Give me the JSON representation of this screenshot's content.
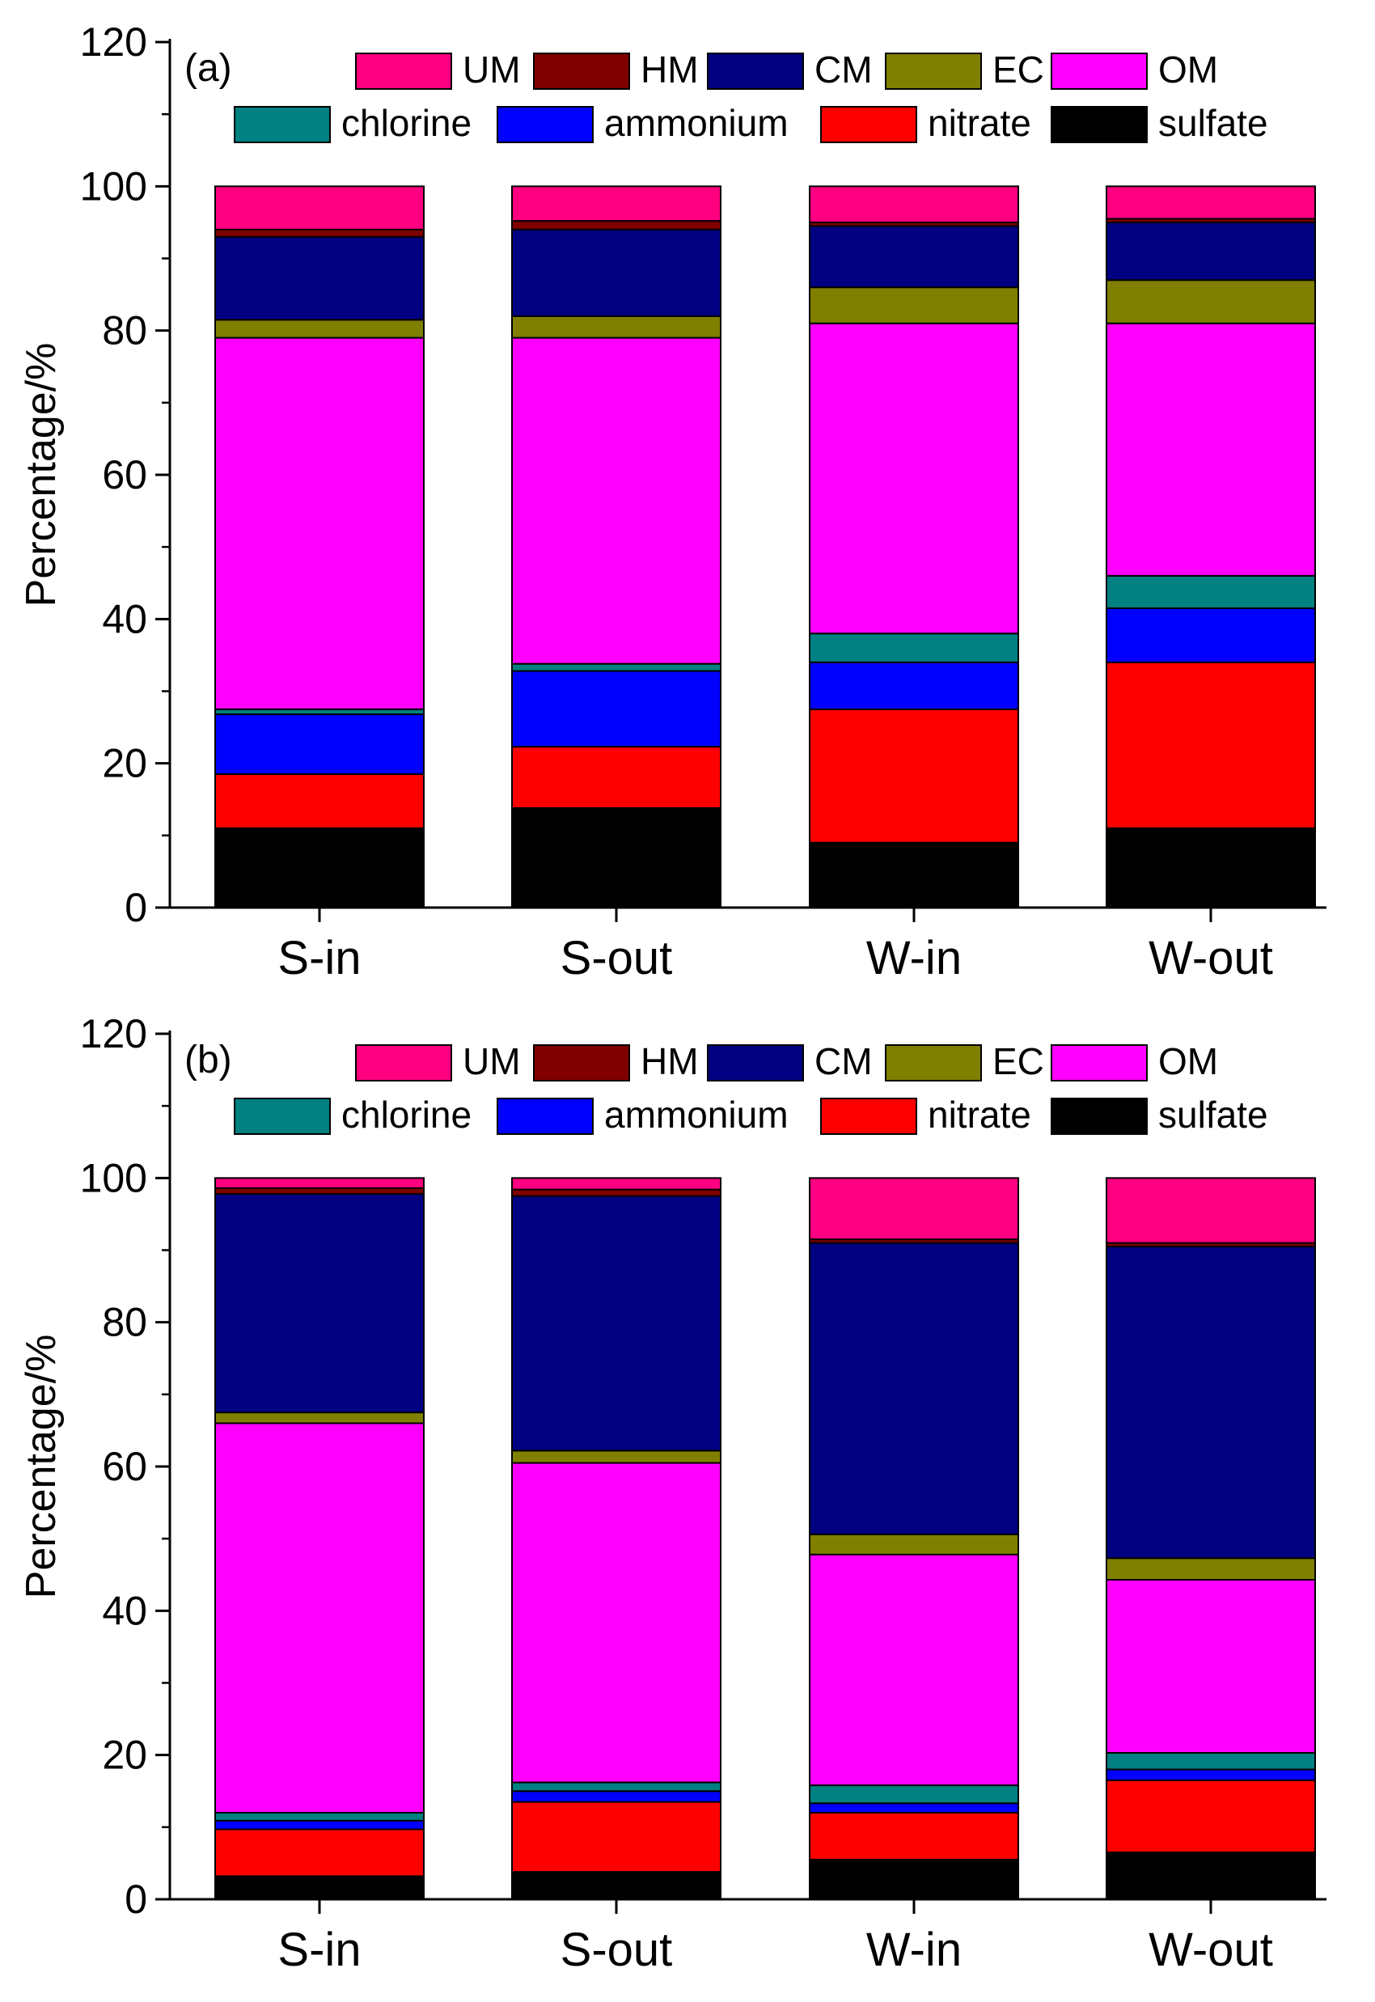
{
  "chart_data": [
    {
      "type": "bar",
      "stacked": true,
      "panel_label": "(a)",
      "categories": [
        "S-in",
        "S-out",
        "W-in",
        "W-out"
      ],
      "ylabel": "Percentage/%",
      "xlabel": "",
      "ylim": [
        0,
        120
      ],
      "yticks": [
        0,
        20,
        40,
        60,
        80,
        100,
        120
      ],
      "series": [
        {
          "name": "sulfate",
          "color": "#000000",
          "values": [
            11.0,
            13.8,
            9.0,
            11.0
          ]
        },
        {
          "name": "nitrate",
          "color": "#ff0000",
          "values": [
            7.5,
            8.5,
            18.5,
            23.0
          ]
        },
        {
          "name": "ammonium",
          "color": "#0000ff",
          "values": [
            8.3,
            10.5,
            6.5,
            7.5
          ]
        },
        {
          "name": "chlorine",
          "color": "#008080",
          "values": [
            0.7,
            1.0,
            4.0,
            4.5
          ]
        },
        {
          "name": "OM",
          "color": "#ff00ff",
          "values": [
            51.5,
            45.2,
            43.0,
            35.0
          ]
        },
        {
          "name": "EC",
          "color": "#808000",
          "values": [
            2.5,
            3.0,
            5.0,
            6.0
          ]
        },
        {
          "name": "CM",
          "color": "#000080",
          "values": [
            11.5,
            12.0,
            8.5,
            8.0
          ]
        },
        {
          "name": "HM",
          "color": "#800000",
          "values": [
            1.0,
            1.2,
            0.5,
            0.5
          ]
        },
        {
          "name": "UM",
          "color": "#ff0080",
          "values": [
            6.0,
            4.8,
            5.0,
            4.5
          ]
        }
      ],
      "legend": {
        "placement": "top",
        "row1": [
          "UM",
          "HM",
          "CM",
          "EC",
          "OM"
        ],
        "row2": [
          "chlorine",
          "ammonium",
          "nitrate",
          "sulfate"
        ]
      }
    },
    {
      "type": "bar",
      "stacked": true,
      "panel_label": "(b)",
      "categories": [
        "S-in",
        "S-out",
        "W-in",
        "W-out"
      ],
      "ylabel": "Percentage/%",
      "xlabel": "",
      "ylim": [
        0,
        120
      ],
      "yticks": [
        0,
        20,
        40,
        60,
        80,
        100,
        120
      ],
      "series": [
        {
          "name": "sulfate",
          "color": "#000000",
          "values": [
            3.2,
            3.8,
            5.5,
            6.5
          ]
        },
        {
          "name": "nitrate",
          "color": "#ff0000",
          "values": [
            6.5,
            9.7,
            6.5,
            10.0
          ]
        },
        {
          "name": "ammonium",
          "color": "#0000ff",
          "values": [
            1.2,
            1.5,
            1.3,
            1.5
          ]
        },
        {
          "name": "chlorine",
          "color": "#008080",
          "values": [
            1.1,
            1.2,
            2.5,
            2.3
          ]
        },
        {
          "name": "OM",
          "color": "#ff00ff",
          "values": [
            54.0,
            44.3,
            32.0,
            24.0
          ]
        },
        {
          "name": "EC",
          "color": "#808000",
          "values": [
            1.5,
            1.7,
            2.8,
            3.0
          ]
        },
        {
          "name": "CM",
          "color": "#000080",
          "values": [
            30.3,
            35.3,
            40.4,
            43.2
          ]
        },
        {
          "name": "HM",
          "color": "#800000",
          "values": [
            0.8,
            0.9,
            0.5,
            0.5
          ]
        },
        {
          "name": "UM",
          "color": "#ff0080",
          "values": [
            1.4,
            1.6,
            8.5,
            9.0
          ]
        }
      ],
      "legend": {
        "placement": "top",
        "row1": [
          "UM",
          "HM",
          "CM",
          "EC",
          "OM"
        ],
        "row2": [
          "chlorine",
          "ammonium",
          "nitrate",
          "sulfate"
        ]
      }
    }
  ]
}
